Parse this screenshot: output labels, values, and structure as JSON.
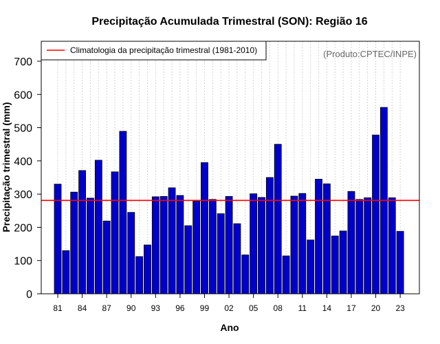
{
  "chart_data": {
    "type": "bar",
    "title": "Precipitação Acumulada Trimestral (SON): Região 16",
    "xlabel": "Ano",
    "ylabel": "Precipitação trimestral (mm)",
    "ylim": [
      0,
      760
    ],
    "yticks": [
      0,
      100,
      200,
      300,
      400,
      500,
      600,
      700
    ],
    "xtick_labels": [
      "81",
      "84",
      "87",
      "90",
      "93",
      "96",
      "99",
      "02",
      "05",
      "08",
      "11",
      "14",
      "17",
      "20",
      "23"
    ],
    "xtick_years": [
      1981,
      1984,
      1987,
      1990,
      1993,
      1996,
      1999,
      2002,
      2005,
      2008,
      2011,
      2014,
      2017,
      2020,
      2023
    ],
    "categories": [
      1981,
      1982,
      1983,
      1984,
      1985,
      1986,
      1987,
      1988,
      1989,
      1990,
      1991,
      1992,
      1993,
      1994,
      1995,
      1996,
      1997,
      1998,
      1999,
      2000,
      2001,
      2002,
      2003,
      2004,
      2005,
      2006,
      2007,
      2008,
      2009,
      2010,
      2011,
      2012,
      2013,
      2014,
      2015,
      2016,
      2017,
      2018,
      2019,
      2020,
      2021,
      2022,
      2023
    ],
    "values": [
      330,
      130,
      306,
      371,
      288,
      402,
      219,
      367,
      489,
      245,
      112,
      147,
      292,
      293,
      319,
      296,
      205,
      279,
      395,
      284,
      241,
      293,
      211,
      117,
      301,
      290,
      350,
      450,
      114,
      294,
      302,
      162,
      345,
      331,
      174,
      189,
      308,
      284,
      289,
      478,
      561,
      289,
      188
    ],
    "bar_color": "#0000cc",
    "reference_line": {
      "label": "Climatologia da precipitação trimestral (1981-2010)",
      "value": 281,
      "color": "#ff0000"
    },
    "legend_position": "top-left",
    "grid": "vertical dotted",
    "credit": "(Produto:CPTEC/INPE)"
  }
}
